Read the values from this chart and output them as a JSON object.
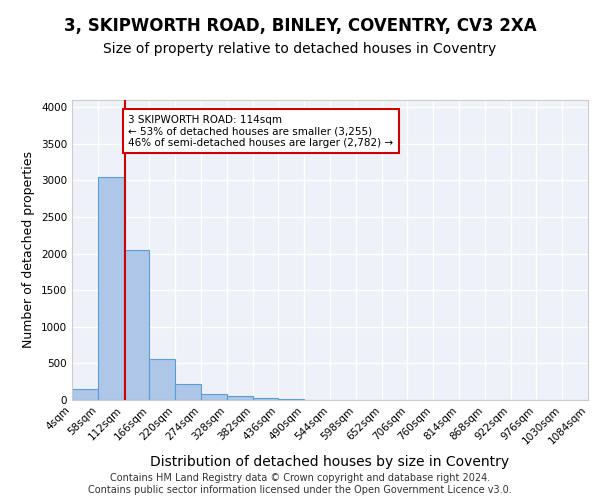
{
  "title1": "3, SKIPWORTH ROAD, BINLEY, COVENTRY, CV3 2XA",
  "title2": "Size of property relative to detached houses in Coventry",
  "xlabel": "Distribution of detached houses by size in Coventry",
  "ylabel": "Number of detached properties",
  "bar_values": [
    150,
    3050,
    2055,
    555,
    220,
    80,
    60,
    30,
    10,
    5,
    2,
    1,
    0,
    0,
    0,
    0,
    0,
    0,
    0,
    0
  ],
  "bin_edges": [
    4,
    58,
    112,
    166,
    220,
    274,
    328,
    382,
    436,
    490,
    544,
    598,
    652,
    706,
    760,
    814,
    868,
    922,
    976,
    1030,
    1084
  ],
  "bar_color": "#aec6e8",
  "bar_edge_color": "#5a9fd4",
  "vline_x": 114,
  "vline_color": "#cc0000",
  "annotation_text": "3 SKIPWORTH ROAD: 114sqm\n← 53% of detached houses are smaller (3,255)\n46% of semi-detached houses are larger (2,782) →",
  "annotation_box_color": "#cc0000",
  "ylim": [
    0,
    4100
  ],
  "footer": "Contains HM Land Registry data © Crown copyright and database right 2024.\nContains public sector information licensed under the Open Government Licence v3.0.",
  "bg_color": "#eef2f8",
  "grid_color": "#ffffff",
  "title1_fontsize": 12,
  "title2_fontsize": 10,
  "axis_label_fontsize": 9,
  "tick_fontsize": 7.5,
  "footer_fontsize": 7
}
